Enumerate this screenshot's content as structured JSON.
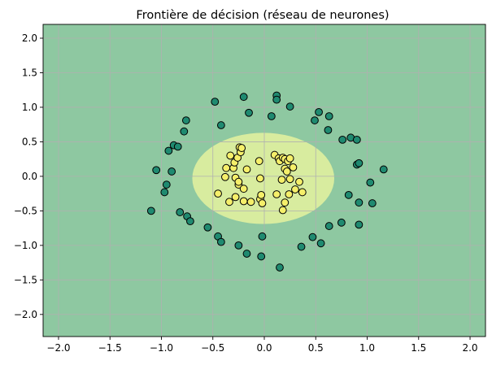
{
  "chart_data": {
    "type": "scatter",
    "title": "Frontière de décision (réseau de neurones)",
    "xlabel": "",
    "ylabel": "",
    "xlim": [
      -2.15,
      2.15
    ],
    "ylim": [
      -2.32,
      2.2
    ],
    "grid": true,
    "legend": "none",
    "x_ticks": [
      -2.0,
      -1.5,
      -1.0,
      -0.5,
      0.0,
      0.5,
      1.0,
      1.5,
      2.0
    ],
    "y_ticks": [
      -2.0,
      -1.5,
      -1.0,
      -0.5,
      0.0,
      0.5,
      1.0,
      1.5,
      2.0
    ],
    "x_tick_labels": [
      "−2.0",
      "−1.5",
      "−1.0",
      "−0.5",
      "0.0",
      "0.5",
      "1.0",
      "1.5",
      "2.0"
    ],
    "y_tick_labels": [
      "−2.0",
      "−1.5",
      "−1.0",
      "−0.5",
      "0.0",
      "0.5",
      "1.0",
      "1.5",
      "2.0"
    ],
    "decision_region": {
      "background_class": 0,
      "inner_class": 1,
      "inner_shape": "ellipse",
      "center": [
        -0.01,
        -0.03
      ],
      "semi_axes": [
        0.69,
        0.66
      ]
    },
    "colors": {
      "class_0_region": "#8ec8a1",
      "class_1_region": "#d8ec9f",
      "class_0_point": "#1f8a70",
      "class_1_point": "#f5ef6a",
      "point_edge": "#000000",
      "grid": "#b0b0b0"
    },
    "series": [
      {
        "class": 0,
        "points": [
          [
            -1.1,
            -0.5
          ],
          [
            -1.05,
            0.09
          ],
          [
            -0.97,
            -0.23
          ],
          [
            -0.95,
            -0.12
          ],
          [
            -0.93,
            0.37
          ],
          [
            -0.88,
            0.45
          ],
          [
            -0.9,
            0.07
          ],
          [
            -0.84,
            0.43
          ],
          [
            -0.82,
            -0.52
          ],
          [
            -0.78,
            0.65
          ],
          [
            -0.76,
            0.81
          ],
          [
            -0.75,
            -0.58
          ],
          [
            -0.72,
            -0.65
          ],
          [
            -0.55,
            -0.74
          ],
          [
            -0.48,
            1.08
          ],
          [
            -0.45,
            -0.87
          ],
          [
            -0.42,
            -0.95
          ],
          [
            -0.42,
            0.74
          ],
          [
            -0.25,
            -1.0
          ],
          [
            -0.2,
            1.15
          ],
          [
            -0.17,
            -1.12
          ],
          [
            -0.15,
            0.92
          ],
          [
            -0.03,
            -1.16
          ],
          [
            -0.02,
            -0.87
          ],
          [
            0.07,
            0.87
          ],
          [
            0.12,
            1.17
          ],
          [
            0.12,
            1.11
          ],
          [
            0.15,
            -1.32
          ],
          [
            0.25,
            1.01
          ],
          [
            0.36,
            -1.02
          ],
          [
            0.47,
            -0.88
          ],
          [
            0.49,
            0.81
          ],
          [
            0.53,
            0.93
          ],
          [
            0.55,
            -0.97
          ],
          [
            0.62,
            0.67
          ],
          [
            0.63,
            0.87
          ],
          [
            0.63,
            -0.72
          ],
          [
            0.75,
            -0.67
          ],
          [
            0.76,
            0.53
          ],
          [
            0.82,
            -0.27
          ],
          [
            0.84,
            0.56
          ],
          [
            0.9,
            0.53
          ],
          [
            0.9,
            0.17
          ],
          [
            0.92,
            0.19
          ],
          [
            0.92,
            -0.38
          ],
          [
            0.92,
            -0.7
          ],
          [
            1.03,
            -0.09
          ],
          [
            1.05,
            -0.39
          ],
          [
            1.16,
            0.1
          ]
        ]
      },
      {
        "class": 1,
        "points": [
          [
            -0.45,
            -0.25
          ],
          [
            -0.38,
            -0.01
          ],
          [
            -0.37,
            0.12
          ],
          [
            -0.34,
            -0.37
          ],
          [
            -0.33,
            0.3
          ],
          [
            -0.3,
            0.12
          ],
          [
            -0.29,
            0.2
          ],
          [
            -0.28,
            -0.02
          ],
          [
            -0.28,
            -0.3
          ],
          [
            -0.26,
            0.27
          ],
          [
            -0.25,
            -0.12
          ],
          [
            -0.25,
            -0.08
          ],
          [
            -0.24,
            0.42
          ],
          [
            -0.23,
            0.35
          ],
          [
            -0.22,
            0.41
          ],
          [
            -0.2,
            -0.18
          ],
          [
            -0.2,
            -0.36
          ],
          [
            -0.17,
            0.1
          ],
          [
            -0.13,
            -0.37
          ],
          [
            -0.05,
            0.22
          ],
          [
            -0.04,
            -0.03
          ],
          [
            -0.04,
            -0.33
          ],
          [
            -0.03,
            -0.27
          ],
          [
            -0.02,
            -0.39
          ],
          [
            0.1,
            0.31
          ],
          [
            0.12,
            -0.26
          ],
          [
            0.14,
            0.26
          ],
          [
            0.15,
            0.22
          ],
          [
            0.17,
            -0.05
          ],
          [
            0.18,
            -0.49
          ],
          [
            0.18,
            0.27
          ],
          [
            0.2,
            0.25
          ],
          [
            0.2,
            -0.38
          ],
          [
            0.2,
            0.11
          ],
          [
            0.22,
            0.07
          ],
          [
            0.23,
            0.22
          ],
          [
            0.24,
            -0.26
          ],
          [
            0.25,
            0.26
          ],
          [
            0.25,
            -0.04
          ],
          [
            0.28,
            0.13
          ],
          [
            0.3,
            -0.19
          ],
          [
            0.34,
            -0.08
          ],
          [
            0.37,
            -0.23
          ]
        ]
      }
    ]
  }
}
